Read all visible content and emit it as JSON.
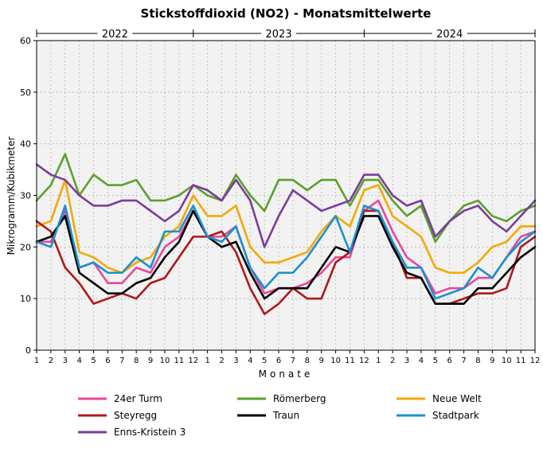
{
  "chart_data": {
    "type": "line",
    "title": "Stickstoffdioxid (NO2) - Monatsmittelwerte",
    "xlabel": "Monate",
    "ylabel": "Mikrogramm/Kubikmeter",
    "ylim": [
      0,
      60
    ],
    "yticks": [
      0,
      10,
      20,
      30,
      40,
      50,
      60
    ],
    "years": [
      "2022",
      "2023",
      "2024"
    ],
    "months": [
      "1",
      "2",
      "3",
      "4",
      "5",
      "6",
      "7",
      "8",
      "9",
      "10",
      "11",
      "12"
    ],
    "grid": true,
    "legend_position": "bottom",
    "series": [
      {
        "name": "24er Turm",
        "color": "#e8479a",
        "values": [
          21,
          21,
          27,
          16,
          17,
          13,
          13,
          16,
          15,
          20,
          22,
          27,
          22,
          22,
          24,
          16,
          11,
          12,
          12,
          13,
          15,
          18,
          18,
          27,
          29,
          23,
          18,
          16,
          11,
          12,
          12,
          14,
          14,
          18,
          22,
          23
        ]
      },
      {
        "name": "Römerberg",
        "color": "#5aa02c",
        "values": [
          29,
          32,
          38,
          30,
          34,
          32,
          32,
          33,
          29,
          29,
          30,
          32,
          30,
          29,
          34,
          30,
          27,
          33,
          33,
          31,
          33,
          33,
          28,
          33,
          33,
          29,
          26,
          28,
          21,
          25,
          28,
          29,
          26,
          25,
          27,
          28
        ]
      },
      {
        "name": "Neue Welt",
        "color": "#f5a800",
        "values": [
          24,
          25,
          33,
          19,
          18,
          16,
          15,
          17,
          18,
          22,
          24,
          30,
          26,
          26,
          28,
          20,
          17,
          17,
          18,
          19,
          23,
          26,
          24,
          31,
          32,
          26,
          24,
          22,
          16,
          15,
          15,
          17,
          20,
          21,
          24,
          24
        ]
      },
      {
        "name": "Steyregg",
        "color": "#b01818",
        "values": [
          25,
          23,
          16,
          13,
          9,
          10,
          11,
          10,
          13,
          14,
          18,
          22,
          22,
          23,
          19,
          12,
          7,
          9,
          12,
          10,
          10,
          17,
          19,
          27,
          27,
          21,
          14,
          14,
          9,
          9,
          10,
          11,
          11,
          12,
          20,
          22
        ]
      },
      {
        "name": "Traun",
        "color": "#000000",
        "values": [
          21,
          22,
          26,
          15,
          13,
          11,
          11,
          13,
          14,
          18,
          21,
          27,
          22,
          20,
          21,
          15,
          10,
          12,
          12,
          12,
          16,
          20,
          19,
          26,
          26,
          20,
          15,
          14,
          9,
          9,
          9,
          12,
          12,
          15,
          18,
          20
        ]
      },
      {
        "name": "Stadtpark",
        "color": "#1a90d0",
        "values": [
          21,
          20,
          28,
          16,
          17,
          15,
          15,
          18,
          16,
          23,
          23,
          28,
          22,
          21,
          24,
          16,
          12,
          15,
          15,
          18,
          22,
          26,
          19,
          28,
          27,
          21,
          16,
          16,
          10,
          11,
          12,
          16,
          14,
          18,
          21,
          23
        ]
      },
      {
        "name": "Enns-Kristein 3",
        "color": "#7a3d9a",
        "values": [
          36,
          34,
          33,
          30,
          28,
          28,
          29,
          29,
          27,
          25,
          27,
          32,
          31,
          29,
          33,
          29,
          20,
          26,
          31,
          29,
          27,
          28,
          29,
          34,
          34,
          30,
          28,
          29,
          22,
          25,
          27,
          28,
          25,
          23,
          26,
          29
        ]
      }
    ]
  }
}
